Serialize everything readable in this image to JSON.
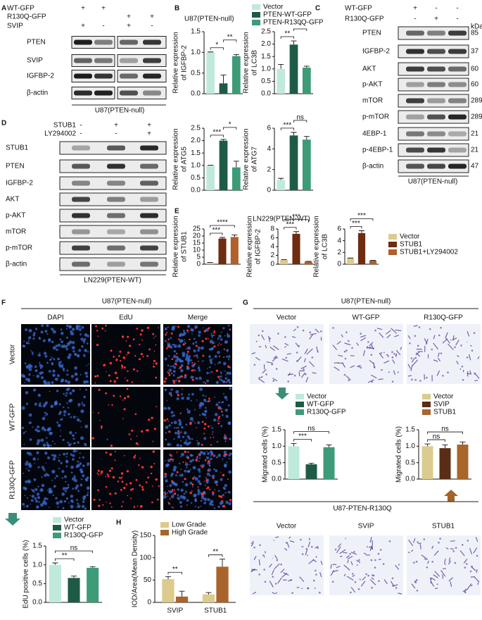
{
  "panel_labels": [
    "A",
    "B",
    "C",
    "D",
    "E",
    "F",
    "G",
    "H"
  ],
  "blots": [
    {
      "conditions": [
        {
          "name": "WT-GFP",
          "signs": [
            "+",
            "+",
            null,
            null
          ]
        },
        {
          "name": "R130Q-GFP",
          "signs": [
            null,
            null,
            "+",
            "+"
          ]
        },
        {
          "name": "SVIP",
          "signs": [
            "+",
            "-",
            "+",
            "-"
          ]
        }
      ],
      "rows": [
        "PTEN",
        "SVIP",
        "IGFBP-2",
        "β-actin"
      ],
      "caption": "U87(PTEN-null)"
    },
    {
      "conditions": [
        {
          "name": "WT-GFP",
          "signs": [
            "+",
            "-",
            "-"
          ]
        },
        {
          "name": "R130Q-GFP",
          "signs": [
            "-",
            "+",
            "-"
          ]
        }
      ],
      "rows": [
        "PTEN",
        "IGFBP-2",
        "AKT",
        "p-AKT",
        "mTOR",
        "p-mTOR",
        "4EBP-1",
        "p-4EBP-1",
        "β-actin"
      ],
      "kda_unit": "kDa",
      "kda": [
        85,
        37,
        60,
        60,
        289,
        289,
        21,
        21,
        47
      ],
      "caption": "U87(PTEN-null)"
    },
    {
      "conditions": [
        {
          "name": "STUB1",
          "signs": [
            "-",
            "+",
            "+"
          ]
        },
        {
          "name": "LY294002",
          "signs": [
            "-",
            "-",
            "+"
          ]
        }
      ],
      "rows": [
        "STUB1",
        "PTEN",
        "IGFBP-2",
        "AKT",
        "p-AKT",
        "mTOR",
        "p-mTOR",
        "β-actin"
      ],
      "caption": "LN229(PTEN-WT)"
    }
  ],
  "panel_b_title": "U87(PTEN-null)",
  "panel_e_title": "LN229(PTEN-WT)",
  "legends": {
    "panel_b": [
      {
        "name": "Vector",
        "color": "#bfeadb"
      },
      {
        "name": "PTEN-WT-GFP",
        "color": "#1e5b47"
      },
      {
        "name": "PTEN-R130Q-GFP",
        "color": "#3d9b78"
      }
    ],
    "panel_e": [
      {
        "name": "Vector",
        "color": "#dccb8c"
      },
      {
        "name": "STUB1",
        "color": "#6e2c12"
      },
      {
        "name": "STUB1+LY294002",
        "color": "#b0602a"
      }
    ],
    "panel_f": [
      {
        "name": "Vector",
        "color": "#bfeadb"
      },
      {
        "name": "WT-GFP",
        "color": "#1e5b47"
      },
      {
        "name": "R130Q-GFP",
        "color": "#3d9b78"
      }
    ],
    "panel_g_gfp": [
      {
        "name": "Vector",
        "color": "#bfeadb"
      },
      {
        "name": "WT-GFP",
        "color": "#1e5b47"
      },
      {
        "name": "R130Q-GFP",
        "color": "#3d9b78"
      }
    ],
    "panel_g_stub": [
      {
        "name": "Vector",
        "color": "#d9cc8e"
      },
      {
        "name": "SVIP",
        "color": "#5b2c16"
      },
      {
        "name": "STUB1",
        "color": "#a9652c"
      }
    ]
  },
  "chart_data": [
    {
      "type": "bar",
      "ylabel": [
        "Relative expression",
        "of IGFBP-2"
      ],
      "values": [
        1.0,
        0.25,
        0.91
      ],
      "errors": [
        0.01,
        0.2,
        0.04
      ],
      "ylim": [
        0,
        1.5
      ],
      "yticks": [
        {
          "value": 0,
          "label": "0.0"
        },
        0.5,
        {
          "value": 1,
          "label": "1.0"
        },
        1.5
      ],
      "sig": [
        "*",
        "**"
      ]
    },
    {
      "type": "bar",
      "ylabel": [
        "Relative expression",
        "of LC3B"
      ],
      "values": [
        1.0,
        1.98,
        1.05
      ],
      "errors": [
        0.18,
        0.15,
        0.06
      ],
      "ylim": [
        0,
        2.5
      ],
      "yticks": [
        {
          "value": 0,
          "label": "0.0"
        },
        0.5,
        {
          "value": 1,
          "label": "1.0"
        },
        1.5,
        {
          "value": 2,
          "label": "2.0"
        },
        2.5
      ],
      "sig": [
        "**",
        "*"
      ]
    },
    {
      "type": "bar",
      "ylabel": [
        "Relative expression",
        "of ATG5"
      ],
      "values": [
        1.0,
        2.0,
        0.92
      ],
      "errors": [
        0.01,
        0.05,
        0.25
      ],
      "ylim": [
        0,
        2.5
      ],
      "yticks": [
        {
          "value": 0,
          "label": "0.0"
        },
        0.5,
        {
          "value": 1,
          "label": "1.0"
        },
        1.5,
        {
          "value": 2,
          "label": "2.0"
        },
        2.5
      ],
      "sig": [
        "***",
        "*"
      ]
    },
    {
      "type": "bar",
      "ylabel": [
        "Relative expression",
        "of ATG7"
      ],
      "values": [
        1.0,
        5.3,
        4.9
      ],
      "errors": [
        0.15,
        0.3,
        0.3
      ],
      "ylim": [
        0,
        6
      ],
      "yticks": [
        0,
        2,
        4,
        6
      ],
      "sig": [
        "***",
        "ns"
      ]
    },
    {
      "type": "bar",
      "ylabel": [
        "Relative expression",
        "of STUB1"
      ],
      "values": [
        1.0,
        18.2,
        19.3
      ],
      "errors": [
        0.2,
        0.8,
        1.5
      ],
      "ylim": [
        0,
        25
      ],
      "yticks": [
        0,
        5,
        10,
        15,
        20,
        25
      ],
      "sig": [
        "***",
        "****"
      ]
    },
    {
      "type": "bar",
      "ylabel": [
        "Relative expression",
        "of IGFBP-2"
      ],
      "values": [
        1.0,
        6.9,
        0.6
      ],
      "errors": [
        0.05,
        0.5,
        0.05
      ],
      "ylim": [
        0,
        8
      ],
      "yticks": [
        0,
        2,
        4,
        6,
        8
      ],
      "sig": [
        "***",
        "***"
      ]
    },
    {
      "type": "bar",
      "ylabel": [
        "Relative expression",
        "of LC3B"
      ],
      "values": [
        1.0,
        5.3,
        0.6
      ],
      "errors": [
        0.05,
        0.4,
        0.05
      ],
      "ylim": [
        0,
        6
      ],
      "yticks": [
        0,
        2,
        4,
        6
      ],
      "sig": [
        "***",
        "***"
      ]
    },
    {
      "type": "bar",
      "ylabel": [
        "EdU positive cells (%)"
      ],
      "values": [
        1.0,
        0.65,
        0.92
      ],
      "errors": [
        0.05,
        0.05,
        0.03
      ],
      "ylim": [
        0,
        1.5
      ],
      "yticks": [
        {
          "value": 0,
          "label": "0.0"
        },
        0.5,
        {
          "value": 1,
          "label": "1.0"
        },
        1.5
      ],
      "sig": [
        "**",
        "ns"
      ]
    },
    {
      "type": "bar",
      "ylabel": [
        "Migrated cells (%)"
      ],
      "values": [
        1.0,
        0.45,
        0.97
      ],
      "errors": [
        0.08,
        0.03,
        0.07
      ],
      "ylim": [
        0,
        1.5
      ],
      "yticks": [
        {
          "value": 0,
          "label": "0.0"
        },
        0.5,
        {
          "value": 1,
          "label": "1.0"
        },
        1.5
      ],
      "sig": [
        "***",
        "ns"
      ]
    },
    {
      "type": "bar",
      "ylabel": [
        "Migrated cells (%)"
      ],
      "values": [
        1.0,
        0.94,
        1.05
      ],
      "errors": [
        0.07,
        0.1,
        0.08
      ],
      "ylim": [
        0,
        1.5
      ],
      "yticks": [
        {
          "value": 0,
          "label": "0.0"
        },
        0.5,
        {
          "value": 1,
          "label": "1.0"
        },
        1.5
      ],
      "sig": [
        "ns",
        "ns"
      ]
    },
    {
      "type": "bar",
      "ylabel": [
        "IOD/Area(Mean Density)"
      ],
      "categories": [
        "SVIP",
        "STUB1"
      ],
      "series": [
        {
          "name": "Low Grade",
          "color": "#dccb8c",
          "values": [
            52,
            18
          ],
          "errors": [
            6,
            4
          ]
        },
        {
          "name": "High Grade",
          "color": "#a8642a",
          "values": [
            13,
            80
          ],
          "errors": [
            12,
            17
          ]
        }
      ],
      "ylim": [
        0,
        150
      ],
      "yticks": [
        0,
        50,
        100,
        150
      ],
      "sig": [
        "**",
        "**"
      ]
    }
  ],
  "panel_f": {
    "title": "U87(PTEN-null)",
    "stains": [
      "DAPI",
      "EdU",
      "Merge"
    ],
    "rows": [
      "Vector",
      "WT-GFP",
      "R130Q-GFP"
    ]
  },
  "panel_g": {
    "title": "U87(PTEN-null)",
    "columns": [
      "Vector",
      "WT-GFP",
      "R130Q-GFP"
    ],
    "subtitle": "U87-PTEN-R130Q",
    "columns2": [
      "Vector",
      "SVIP",
      "STUB1"
    ]
  }
}
